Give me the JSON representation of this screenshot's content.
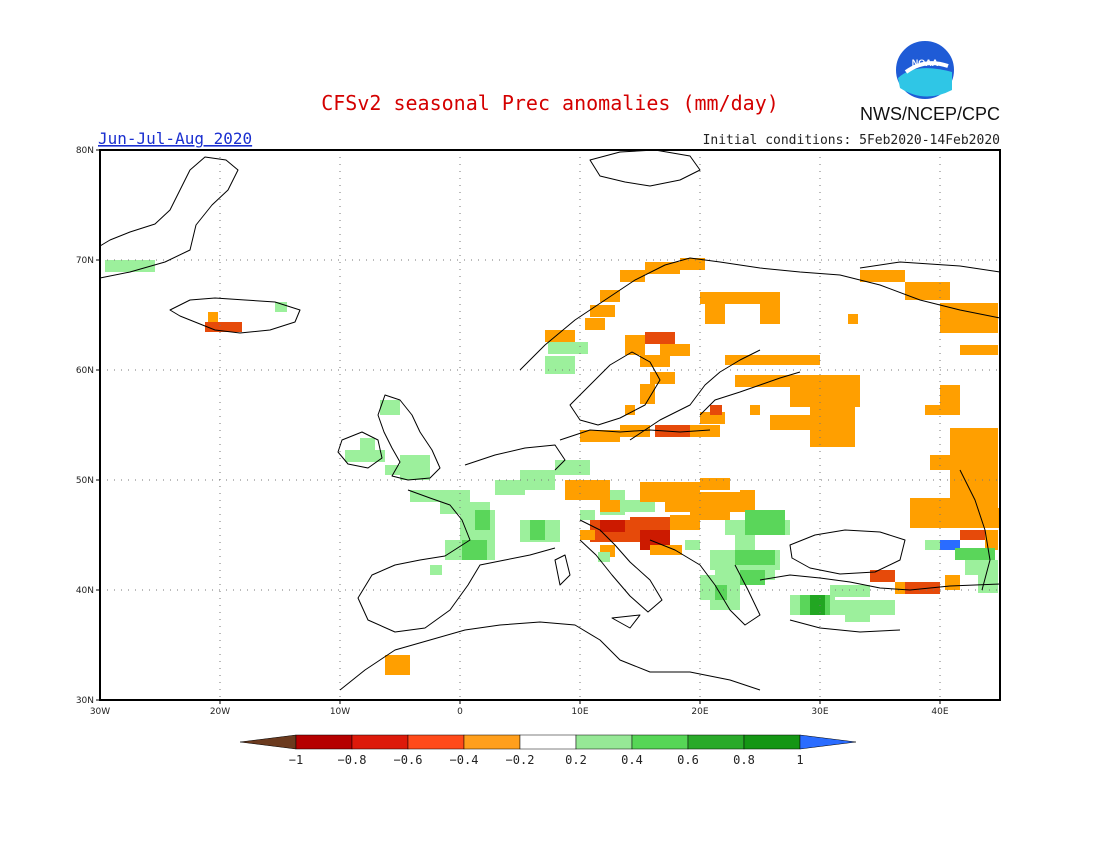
{
  "header": {
    "title": "CFSv2 seasonal Prec anomalies (mm/day)",
    "period": "Jun-Jul-Aug 2020",
    "agency": "NWS/NCEP/CPC",
    "initial_conditions": "Initial conditions: 5Feb2020-14Feb2020",
    "logo_text": "NOAA"
  },
  "axes": {
    "lat_labels": [
      "80N",
      "70N",
      "60N",
      "50N",
      "40N",
      "30N"
    ],
    "lon_labels": [
      "30W",
      "20W",
      "10W",
      "0",
      "10E",
      "20E",
      "30E",
      "40E"
    ]
  },
  "legend": {
    "labels": [
      "-1",
      "-0.8",
      "-0.6",
      "-0.4",
      "-0.2",
      "0.2",
      "0.4",
      "0.6",
      "0.8",
      "1"
    ],
    "colors": [
      "#6b3a1e",
      "#b50000",
      "#dd1a0a",
      "#ff4a1a",
      "#ff9f1c",
      "#ffffff",
      "#96e896",
      "#56d656",
      "#2aaa2a",
      "#149614",
      "#2a6cff"
    ]
  },
  "colors": {
    "title": "#d40000",
    "period": "#1a2fd0",
    "neg_orange": "#ff9f00",
    "neg_red": "#e64a0a",
    "neg_darkred": "#cc1a00",
    "pos_light": "#9cf09c",
    "pos_mid": "#5ad65a",
    "pos_dark": "#22a622",
    "pos_blue": "#2a6cff"
  }
}
